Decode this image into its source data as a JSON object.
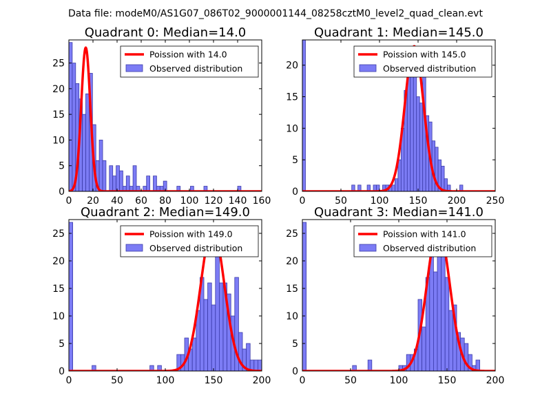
{
  "figure": {
    "suptitle": "Data file: modeM0/AS1G07_086T02_9000001144_08258cztM0_level2_quad_clean.evt"
  },
  "style": {
    "bar_fill": "#7c7cf5",
    "bar_edge": "#3a3aa8",
    "curve": "#ff0000"
  },
  "chart_data": [
    {
      "type": "bar",
      "title": "Quadrant 0: Median=14.0",
      "xlim": [
        0,
        160
      ],
      "ylim": [
        0,
        29.5
      ],
      "xticks": [
        0,
        20,
        40,
        60,
        80,
        100,
        120,
        140,
        160
      ],
      "yticks": [
        0,
        5,
        10,
        15,
        20,
        25
      ],
      "bin_width": 2.8,
      "bins": [
        {
          "x": 0,
          "v": 29
        },
        {
          "x": 2.8,
          "v": 25
        },
        {
          "x": 5.6,
          "v": 21
        },
        {
          "x": 8.4,
          "v": 18
        },
        {
          "x": 11.2,
          "v": 15
        },
        {
          "x": 14,
          "v": 19
        },
        {
          "x": 16.8,
          "v": 23
        },
        {
          "x": 19.6,
          "v": 13
        },
        {
          "x": 22.4,
          "v": 6
        },
        {
          "x": 25.2,
          "v": 10
        },
        {
          "x": 28,
          "v": 6
        },
        {
          "x": 33.6,
          "v": 5
        },
        {
          "x": 36.4,
          "v": 3
        },
        {
          "x": 39.2,
          "v": 5
        },
        {
          "x": 42,
          "v": 4
        },
        {
          "x": 44.8,
          "v": 1
        },
        {
          "x": 47.6,
          "v": 3
        },
        {
          "x": 50.4,
          "v": 1
        },
        {
          "x": 53.2,
          "v": 5
        },
        {
          "x": 56,
          "v": 1
        },
        {
          "x": 61.6,
          "v": 1
        },
        {
          "x": 64.4,
          "v": 3
        },
        {
          "x": 70,
          "v": 3
        },
        {
          "x": 72.8,
          "v": 1
        },
        {
          "x": 75.6,
          "v": 1
        },
        {
          "x": 78.4,
          "v": 2
        },
        {
          "x": 89.6,
          "v": 1
        },
        {
          "x": 100.8,
          "v": 1
        },
        {
          "x": 112,
          "v": 1
        },
        {
          "x": 140,
          "v": 1
        }
      ],
      "curve": {
        "mean": 14.0,
        "peak": 28.0
      },
      "legend": {
        "curve_label": "Poission with 14.0",
        "bars_label": "Observed distribution"
      }
    },
    {
      "type": "bar",
      "title": "Quadrant 1: Median=145.0",
      "xlim": [
        0,
        250
      ],
      "ylim": [
        0,
        24
      ],
      "xticks": [
        0,
        50,
        100,
        150,
        200,
        250
      ],
      "yticks": [
        0,
        5,
        10,
        15,
        20
      ],
      "bin_width": 4,
      "bins": [
        {
          "x": 0,
          "v": 24
        },
        {
          "x": 64,
          "v": 1
        },
        {
          "x": 72,
          "v": 1
        },
        {
          "x": 84,
          "v": 1
        },
        {
          "x": 92,
          "v": 1
        },
        {
          "x": 96,
          "v": 1
        },
        {
          "x": 104,
          "v": 1
        },
        {
          "x": 108,
          "v": 1
        },
        {
          "x": 112,
          "v": 1
        },
        {
          "x": 116,
          "v": 1
        },
        {
          "x": 120,
          "v": 2
        },
        {
          "x": 124,
          "v": 5
        },
        {
          "x": 128,
          "v": 10
        },
        {
          "x": 132,
          "v": 16
        },
        {
          "x": 136,
          "v": 20
        },
        {
          "x": 140,
          "v": 19
        },
        {
          "x": 144,
          "v": 21
        },
        {
          "x": 148,
          "v": 15
        },
        {
          "x": 152,
          "v": 14
        },
        {
          "x": 156,
          "v": 22
        },
        {
          "x": 160,
          "v": 12
        },
        {
          "x": 164,
          "v": 11
        },
        {
          "x": 168,
          "v": 8
        },
        {
          "x": 172,
          "v": 7
        },
        {
          "x": 176,
          "v": 5
        },
        {
          "x": 180,
          "v": 4
        },
        {
          "x": 184,
          "v": 2
        },
        {
          "x": 188,
          "v": 1
        },
        {
          "x": 204,
          "v": 1
        }
      ],
      "curve": {
        "mean": 145.0,
        "peak": 23.0
      },
      "legend": {
        "curve_label": "Poission with 145.0",
        "bars_label": "Observed distribution"
      }
    },
    {
      "type": "bar",
      "title": "Quadrant 2: Median=149.0",
      "xlim": [
        0,
        200
      ],
      "ylim": [
        0,
        27.5
      ],
      "xticks": [
        0,
        50,
        100,
        150,
        200
      ],
      "yticks": [
        0,
        5,
        10,
        15,
        20,
        25
      ],
      "bin_width": 4,
      "bins": [
        {
          "x": 0,
          "v": 27
        },
        {
          "x": 24,
          "v": 1
        },
        {
          "x": 84,
          "v": 1
        },
        {
          "x": 92,
          "v": 1
        },
        {
          "x": 112,
          "v": 3
        },
        {
          "x": 116,
          "v": 3
        },
        {
          "x": 120,
          "v": 6
        },
        {
          "x": 124,
          "v": 4
        },
        {
          "x": 128,
          "v": 6
        },
        {
          "x": 132,
          "v": 11
        },
        {
          "x": 136,
          "v": 17
        },
        {
          "x": 140,
          "v": 13
        },
        {
          "x": 144,
          "v": 16
        },
        {
          "x": 148,
          "v": 12
        },
        {
          "x": 152,
          "v": 25
        },
        {
          "x": 156,
          "v": 16
        },
        {
          "x": 160,
          "v": 16
        },
        {
          "x": 164,
          "v": 14
        },
        {
          "x": 168,
          "v": 10
        },
        {
          "x": 172,
          "v": 17
        },
        {
          "x": 176,
          "v": 7
        },
        {
          "x": 180,
          "v": 4
        },
        {
          "x": 184,
          "v": 5
        },
        {
          "x": 188,
          "v": 2
        },
        {
          "x": 192,
          "v": 2
        },
        {
          "x": 196,
          "v": 2
        }
      ],
      "curve": {
        "mean": 149.0,
        "peak": 26.0
      },
      "legend": {
        "curve_label": "Poission with 149.0",
        "bars_label": "Observed distribution"
      }
    },
    {
      "type": "bar",
      "title": "Quadrant 3: Median=141.0",
      "xlim": [
        0,
        200
      ],
      "ylim": [
        0,
        27.5
      ],
      "xticks": [
        0,
        50,
        100,
        150,
        200
      ],
      "yticks": [
        0,
        5,
        10,
        15,
        20,
        25
      ],
      "bin_width": 4,
      "bins": [
        {
          "x": 0,
          "v": 27
        },
        {
          "x": 52,
          "v": 1
        },
        {
          "x": 68,
          "v": 2
        },
        {
          "x": 100,
          "v": 1
        },
        {
          "x": 104,
          "v": 1
        },
        {
          "x": 108,
          "v": 3
        },
        {
          "x": 112,
          "v": 3
        },
        {
          "x": 116,
          "v": 4
        },
        {
          "x": 120,
          "v": 13
        },
        {
          "x": 124,
          "v": 8
        },
        {
          "x": 128,
          "v": 17
        },
        {
          "x": 132,
          "v": 22
        },
        {
          "x": 136,
          "v": 18
        },
        {
          "x": 140,
          "v": 24
        },
        {
          "x": 144,
          "v": 21
        },
        {
          "x": 148,
          "v": 17
        },
        {
          "x": 152,
          "v": 11
        },
        {
          "x": 156,
          "v": 12
        },
        {
          "x": 160,
          "v": 7
        },
        {
          "x": 164,
          "v": 6
        },
        {
          "x": 168,
          "v": 5
        },
        {
          "x": 172,
          "v": 3
        },
        {
          "x": 176,
          "v": 1
        },
        {
          "x": 180,
          "v": 2
        }
      ],
      "curve": {
        "mean": 141.0,
        "peak": 26.0
      },
      "legend": {
        "curve_label": "Poission with 141.0",
        "bars_label": "Observed distribution"
      }
    }
  ]
}
